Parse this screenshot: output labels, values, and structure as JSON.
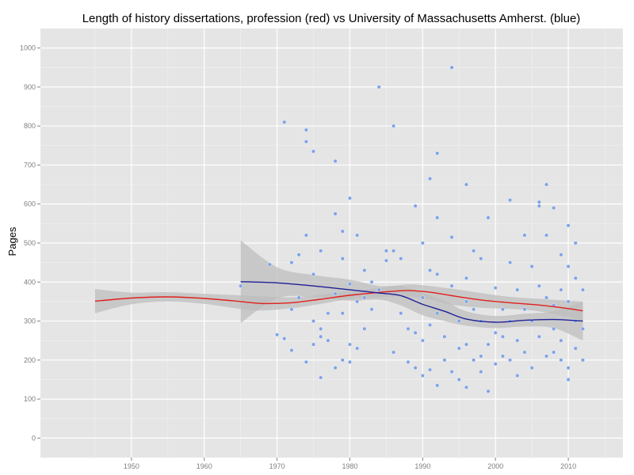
{
  "chart_data": {
    "type": "scatter",
    "title": "Length of history dissertations, profession (red) vs University of Massachusetts Amherst. (blue)",
    "xlabel": "",
    "ylabel": "Pages",
    "xlim": [
      1937.5,
      2017.5
    ],
    "ylim": [
      -50,
      1050
    ],
    "x_ticks": [
      1950,
      1960,
      1970,
      1980,
      1990,
      2000,
      2010
    ],
    "y_ticks": [
      0,
      100,
      200,
      300,
      400,
      500,
      600,
      700,
      800,
      900,
      1000
    ],
    "grid": true,
    "background": "#e5e5e5",
    "colors": {
      "points": "#7fa3e6",
      "profession_line": "#e0201c",
      "umass_line": "#1f1f9a",
      "ribbon": "#bdbdbd",
      "gridline": "#ffffff"
    },
    "series": [
      {
        "color": "red",
        "kind": "smooth",
        "points": [
          [
            1945,
            351
          ],
          [
            1950,
            359
          ],
          [
            1955,
            362
          ],
          [
            1960,
            358
          ],
          [
            1965,
            350
          ],
          [
            1968,
            345
          ],
          [
            1972,
            347
          ],
          [
            1976,
            356
          ],
          [
            1980,
            366
          ],
          [
            1985,
            375
          ],
          [
            1988,
            378
          ],
          [
            1991,
            374
          ],
          [
            1994,
            365
          ],
          [
            1998,
            354
          ],
          [
            2002,
            347
          ],
          [
            2006,
            341
          ],
          [
            2010,
            332
          ],
          [
            2012,
            326
          ]
        ],
        "ribbon": [
          [
            1945,
            320,
            382
          ],
          [
            1950,
            343,
            373
          ],
          [
            1955,
            350,
            374
          ],
          [
            1960,
            344,
            370
          ],
          [
            1965,
            331,
            366
          ],
          [
            1968,
            327,
            363
          ],
          [
            1972,
            333,
            361
          ],
          [
            1976,
            344,
            368
          ],
          [
            1980,
            356,
            377
          ],
          [
            1985,
            362,
            387
          ],
          [
            1988,
            363,
            394
          ],
          [
            1991,
            355,
            390
          ],
          [
            1994,
            342,
            383
          ],
          [
            1998,
            334,
            372
          ],
          [
            2002,
            331,
            362
          ],
          [
            2006,
            325,
            357
          ],
          [
            2010,
            310,
            352
          ],
          [
            2012,
            303,
            350
          ]
        ]
      },
      {
        "color": "blue",
        "kind": "smooth",
        "points": [
          [
            1965,
            401
          ],
          [
            1970,
            398
          ],
          [
            1975,
            390
          ],
          [
            1980,
            380
          ],
          [
            1984,
            372
          ],
          [
            1987,
            365
          ],
          [
            1990,
            343
          ],
          [
            1993,
            325
          ],
          [
            1996,
            305
          ],
          [
            2000,
            297
          ],
          [
            2004,
            302
          ],
          [
            2008,
            304
          ],
          [
            2012,
            300
          ]
        ],
        "ribbon": [
          [
            1965,
            295,
            507
          ],
          [
            1970,
            358,
            438
          ],
          [
            1975,
            362,
            418
          ],
          [
            1980,
            352,
            406
          ],
          [
            1984,
            355,
            390
          ],
          [
            1987,
            340,
            390
          ],
          [
            1990,
            315,
            372
          ],
          [
            1993,
            300,
            352
          ],
          [
            1996,
            288,
            325
          ],
          [
            2000,
            282,
            313
          ],
          [
            2004,
            286,
            319
          ],
          [
            2008,
            282,
            325
          ],
          [
            2012,
            250,
            350
          ]
        ]
      },
      {
        "color": "blue",
        "kind": "points",
        "points": [
          [
            1965,
            390
          ],
          [
            1969,
            445
          ],
          [
            1970,
            265
          ],
          [
            1971,
            810
          ],
          [
            1971,
            255
          ],
          [
            1972,
            450
          ],
          [
            1972,
            330
          ],
          [
            1972,
            225
          ],
          [
            1973,
            470
          ],
          [
            1973,
            360
          ],
          [
            1974,
            790
          ],
          [
            1974,
            760
          ],
          [
            1974,
            195
          ],
          [
            1974,
            520
          ],
          [
            1975,
            735
          ],
          [
            1975,
            420
          ],
          [
            1975,
            300
          ],
          [
            1975,
            240
          ],
          [
            1976,
            480
          ],
          [
            1976,
            280
          ],
          [
            1976,
            155
          ],
          [
            1976,
            260
          ],
          [
            1977,
            320
          ],
          [
            1977,
            250
          ],
          [
            1978,
            710
          ],
          [
            1978,
            575
          ],
          [
            1978,
            180
          ],
          [
            1978,
            370
          ],
          [
            1979,
            530
          ],
          [
            1979,
            460
          ],
          [
            1979,
            320
          ],
          [
            1979,
            200
          ],
          [
            1980,
            615
          ],
          [
            1980,
            240
          ],
          [
            1980,
            395
          ],
          [
            1980,
            195
          ],
          [
            1981,
            520
          ],
          [
            1981,
            350
          ],
          [
            1981,
            230
          ],
          [
            1982,
            430
          ],
          [
            1982,
            360
          ],
          [
            1982,
            280
          ],
          [
            1983,
            330
          ],
          [
            1983,
            400
          ],
          [
            1984,
            900
          ],
          [
            1984,
            380
          ],
          [
            1985,
            455
          ],
          [
            1985,
            480
          ],
          [
            1986,
            800
          ],
          [
            1986,
            220
          ],
          [
            1986,
            480
          ],
          [
            1987,
            460
          ],
          [
            1987,
            320
          ],
          [
            1988,
            195
          ],
          [
            1988,
            280
          ],
          [
            1989,
            595
          ],
          [
            1989,
            270
          ],
          [
            1989,
            180
          ],
          [
            1990,
            500
          ],
          [
            1990,
            360
          ],
          [
            1990,
            250
          ],
          [
            1990,
            160
          ],
          [
            1991,
            665
          ],
          [
            1991,
            430
          ],
          [
            1991,
            290
          ],
          [
            1991,
            175
          ],
          [
            1992,
            730
          ],
          [
            1992,
            565
          ],
          [
            1992,
            420
          ],
          [
            1992,
            320
          ],
          [
            1992,
            135
          ],
          [
            1993,
            260
          ],
          [
            1993,
            200
          ],
          [
            1994,
            950
          ],
          [
            1994,
            390
          ],
          [
            1994,
            515
          ],
          [
            1994,
            170
          ],
          [
            1995,
            300
          ],
          [
            1995,
            230
          ],
          [
            1995,
            150
          ],
          [
            1996,
            650
          ],
          [
            1996,
            410
          ],
          [
            1996,
            350
          ],
          [
            1996,
            240
          ],
          [
            1996,
            130
          ],
          [
            1997,
            480
          ],
          [
            1997,
            330
          ],
          [
            1997,
            200
          ],
          [
            1998,
            460
          ],
          [
            1998,
            300
          ],
          [
            1998,
            210
          ],
          [
            1998,
            170
          ],
          [
            1999,
            565
          ],
          [
            1999,
            240
          ],
          [
            1999,
            120
          ],
          [
            2000,
            385
          ],
          [
            2000,
            270
          ],
          [
            2000,
            190
          ],
          [
            2001,
            330
          ],
          [
            2001,
            260
          ],
          [
            2001,
            210
          ],
          [
            2002,
            610
          ],
          [
            2002,
            450
          ],
          [
            2002,
            300
          ],
          [
            2002,
            200
          ],
          [
            2003,
            380
          ],
          [
            2003,
            250
          ],
          [
            2003,
            160
          ],
          [
            2004,
            520
          ],
          [
            2004,
            330
          ],
          [
            2004,
            220
          ],
          [
            2005,
            440
          ],
          [
            2005,
            300
          ],
          [
            2005,
            180
          ],
          [
            2006,
            605
          ],
          [
            2006,
            595
          ],
          [
            2006,
            390
          ],
          [
            2006,
            260
          ],
          [
            2007,
            650
          ],
          [
            2007,
            520
          ],
          [
            2007,
            360
          ],
          [
            2007,
            210
          ],
          [
            2008,
            590
          ],
          [
            2008,
            340
          ],
          [
            2008,
            280
          ],
          [
            2008,
            220
          ],
          [
            2009,
            470
          ],
          [
            2009,
            380
          ],
          [
            2009,
            250
          ],
          [
            2009,
            200
          ],
          [
            2010,
            545
          ],
          [
            2010,
            440
          ],
          [
            2010,
            350
          ],
          [
            2010,
            180
          ],
          [
            2010,
            150
          ],
          [
            2011,
            500
          ],
          [
            2011,
            410
          ],
          [
            2011,
            300
          ],
          [
            2011,
            230
          ],
          [
            2012,
            380
          ],
          [
            2012,
            280
          ],
          [
            2012,
            200
          ]
        ]
      }
    ]
  }
}
